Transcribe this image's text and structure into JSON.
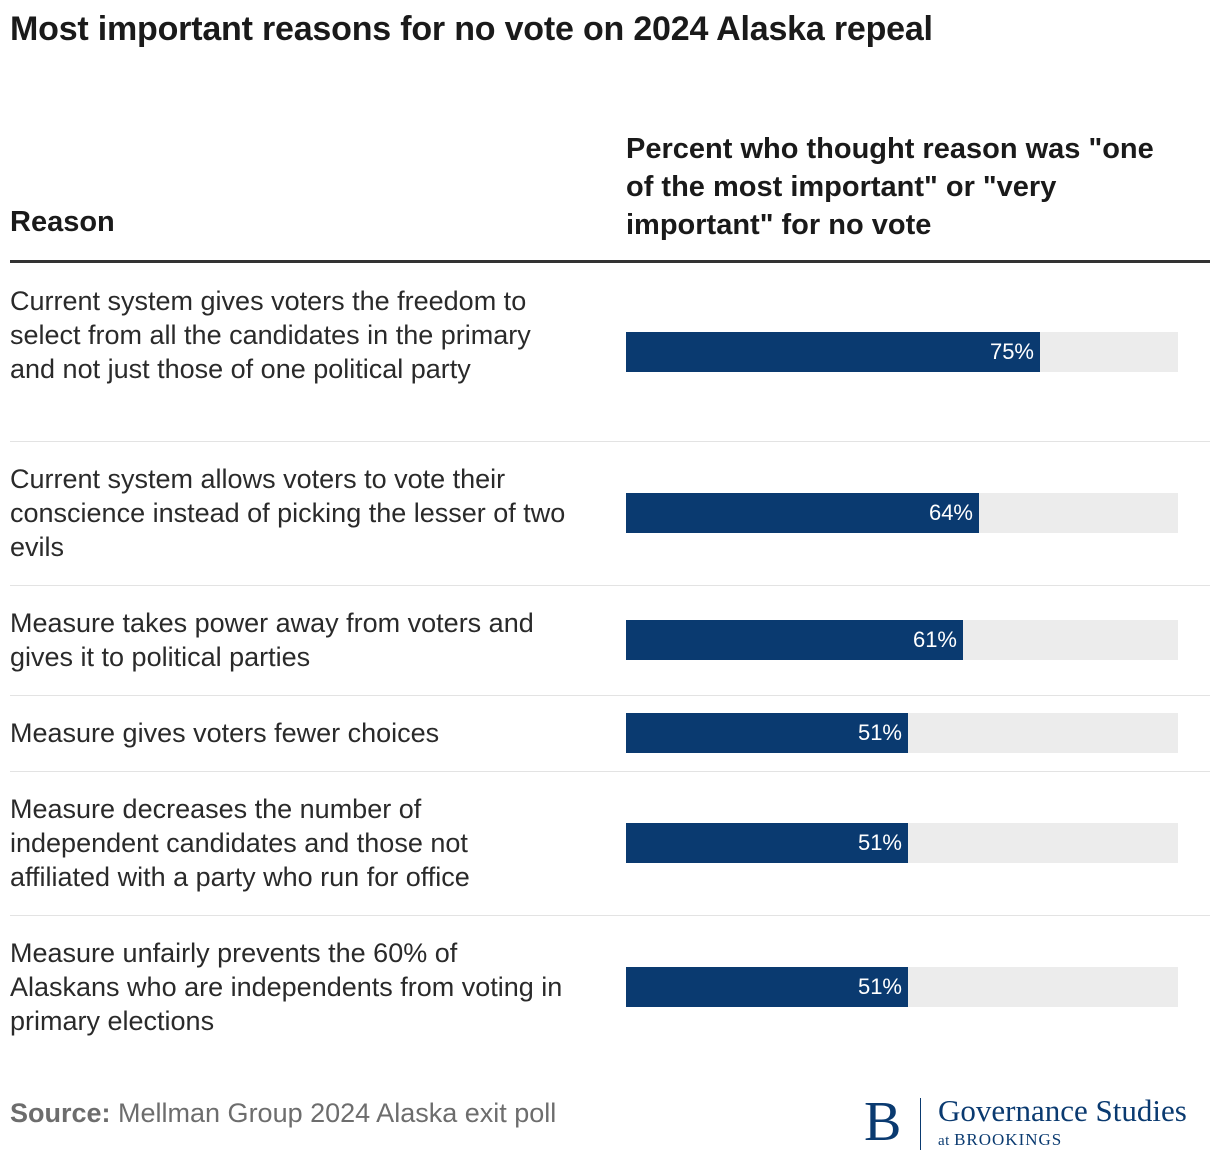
{
  "title": "Most important reasons for no vote on 2024 Alaska repeal",
  "columns": {
    "reason": "Reason",
    "percent": "Percent who thought reason was \"one of the most important\" or \"very important\" for no vote"
  },
  "chart_data": {
    "type": "bar",
    "orientation": "horizontal",
    "categories": [
      "Current system gives voters the freedom to select from all the candidates in the primary and not just those of one political party",
      "Current system allows voters to vote their conscience instead of picking the lesser of two evils",
      "Measure takes power away from voters and gives it to political parties",
      "Measure gives voters fewer choices",
      "Measure decreases the number of independent candidates and those not affiliated with a party who run for office",
      "Measure unfairly prevents the 60% of Alaskans who are independents from voting in primary elections"
    ],
    "values": [
      75,
      64,
      61,
      51,
      51,
      51
    ],
    "labels": [
      "75%",
      "64%",
      "61%",
      "51%",
      "51%",
      "51%"
    ],
    "xlim": [
      0,
      100
    ],
    "bar_color": "#0a3a70",
    "track_color": "#ececec"
  },
  "source": {
    "label": "Source:",
    "text": " Mellman Group 2024 Alaska exit poll"
  },
  "logo": {
    "mark": "B",
    "name": "Governance Studies",
    "sub_prefix": "at",
    "sub_name": "BROOKINGS"
  }
}
